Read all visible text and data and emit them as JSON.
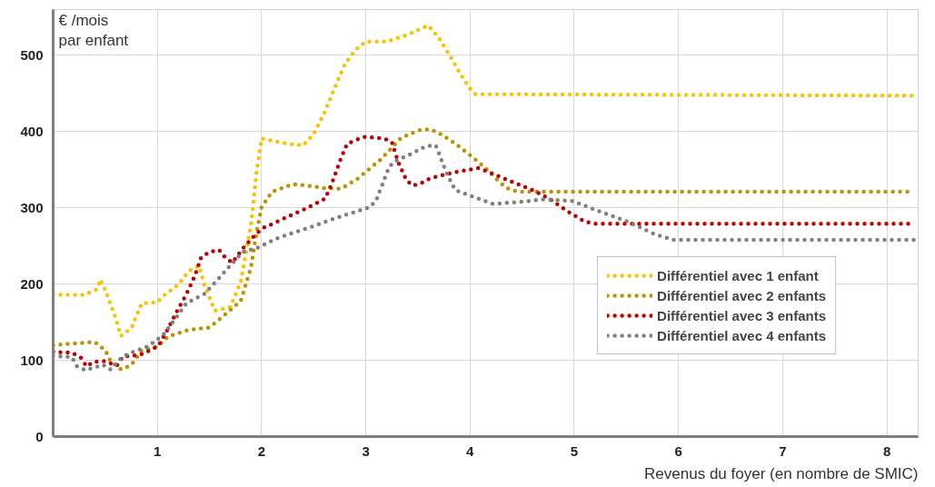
{
  "chart_data": {
    "type": "line",
    "ylabel": "€ /mois\npar enfant",
    "xlabel": "Revenus du foyer (en nombre de SMIC)",
    "xlim": [
      0,
      8.3
    ],
    "ylim": [
      0,
      560
    ],
    "xticks": [
      1,
      2,
      3,
      4,
      5,
      6,
      7,
      8
    ],
    "yticks": [
      0,
      100,
      200,
      300,
      400,
      500
    ],
    "grid": true,
    "legend": "bottom right",
    "line_style": "dotted",
    "series": [
      {
        "name": "Différentiel avec 1 enfant",
        "color": "#ffc000",
        "x": [
          0,
          0.3,
          0.42,
          0.45,
          0.5,
          0.6,
          0.65,
          0.75,
          0.85,
          1.0,
          1.05,
          1.2,
          1.3,
          1.4,
          1.45,
          1.55,
          1.7,
          1.8,
          1.85,
          1.9,
          1.95,
          2.0,
          2.1,
          2.25,
          2.4,
          2.5,
          2.6,
          2.7,
          2.8,
          2.9,
          3.0,
          3.2,
          3.4,
          3.6,
          3.7,
          3.8,
          3.9,
          4.0,
          4.05,
          8.25
        ],
        "values": [
          186,
          186,
          193,
          206,
          192,
          155,
          132,
          142,
          175,
          176,
          184,
          199,
          217,
          224,
          199,
          165,
          170,
          203,
          241,
          280,
          346,
          391,
          388,
          384,
          382,
          397,
          424,
          457,
          489,
          507,
          518,
          518,
          527,
          539,
          523,
          501,
          477,
          456,
          449,
          447
        ]
      },
      {
        "name": "Différentiel avec 2 enfants",
        "color": "#bf9000",
        "x": [
          0,
          0.4,
          0.5,
          0.55,
          0.65,
          0.75,
          0.85,
          1.0,
          1.1,
          1.3,
          1.5,
          1.65,
          1.8,
          1.85,
          1.9,
          1.95,
          2.0,
          2.1,
          2.3,
          2.5,
          2.59,
          2.76,
          2.92,
          2.99,
          3.14,
          3.21,
          3.34,
          3.52,
          3.61,
          3.69,
          3.86,
          4.0,
          4.15,
          4.28,
          4.35,
          4.46,
          8.25
        ],
        "values": [
          120,
          124,
          113,
          99,
          88,
          94,
          113,
          118,
          131,
          140,
          143,
          160,
          178,
          200,
          223,
          267,
          301,
          321,
          331,
          328,
          326,
          325,
          338,
          346,
          363,
          373,
          392,
          402,
          403,
          399,
          384,
          369,
          352,
          334,
          326,
          321,
          321
        ]
      },
      {
        "name": "Différentiel avec 3 enfants",
        "color": "#c00000",
        "x": [
          0,
          0.18,
          0.27,
          0.32,
          0.39,
          0.49,
          0.61,
          0.67,
          0.83,
          0.93,
          1.01,
          1.1,
          1.19,
          1.28,
          1.36,
          1.42,
          1.5,
          1.59,
          1.65,
          1.72,
          1.81,
          1.94,
          2.02,
          2.09,
          2.26,
          2.44,
          2.61,
          2.68,
          2.75,
          2.82,
          2.98,
          3.17,
          3.25,
          3.31,
          3.39,
          3.45,
          3.54,
          3.62,
          3.8,
          3.99,
          4.08,
          4.23,
          4.44,
          4.62,
          4.77,
          4.94,
          5.1,
          5.19,
          8.25
        ],
        "values": [
          111,
          110,
          103,
          92,
          98,
          99,
          93,
          105,
          107,
          113,
          119,
          141,
          165,
          187,
          211,
          235,
          242,
          245,
          235,
          228,
          245,
          265,
          274,
          278,
          289,
          300,
          312,
          334,
          361,
          384,
          393,
          391,
          386,
          360,
          336,
          329,
          333,
          339,
          345,
          350,
          352,
          344,
          332,
          322,
          311,
          295,
          282,
          279,
          279
        ]
      },
      {
        "name": "Différentiel avec 4 enfants",
        "color": "#808080",
        "x": [
          0,
          0.18,
          0.23,
          0.31,
          0.48,
          0.55,
          0.66,
          0.75,
          0.92,
          1.06,
          1.17,
          1.28,
          1.45,
          1.58,
          1.71,
          1.82,
          1.97,
          2.13,
          2.32,
          2.5,
          2.68,
          2.86,
          3.04,
          3.1,
          3.13,
          3.17,
          3.2,
          3.25,
          3.32,
          3.41,
          3.58,
          3.67,
          3.71,
          3.74,
          3.82,
          3.86,
          4.04,
          4.22,
          4.41,
          4.71,
          4.98,
          5.25,
          5.53,
          5.76,
          5.95,
          8.3
        ],
        "values": [
          106,
          104,
          92,
          87,
          94,
          88,
          104,
          110,
          119,
          134,
          154,
          175,
          187,
          206,
          226,
          242,
          248,
          259,
          268,
          276,
          285,
          293,
          301,
          310,
          321,
          334,
          346,
          358,
          364,
          369,
          381,
          382,
          369,
          357,
          333,
          323,
          314,
          305,
          307,
          311,
          309,
          295,
          281,
          266,
          258,
          258
        ]
      }
    ]
  }
}
